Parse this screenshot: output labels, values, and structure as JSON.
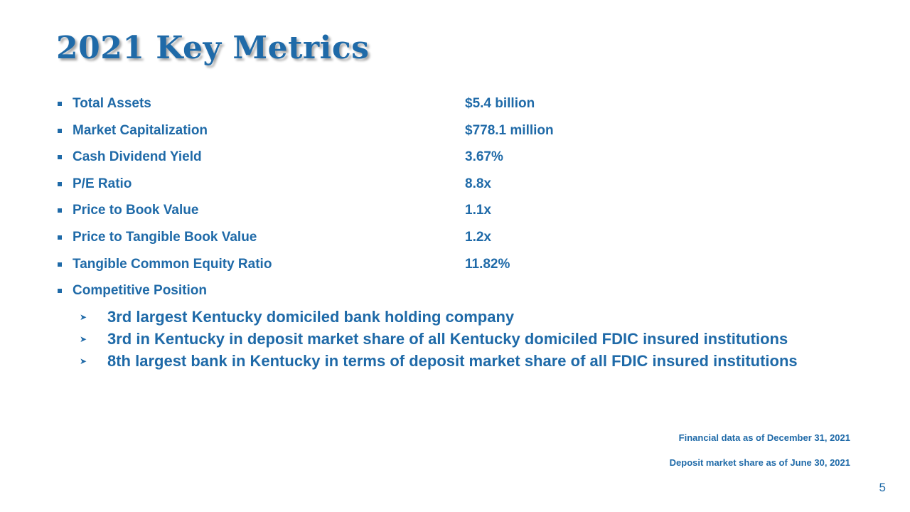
{
  "slide": {
    "title": "2021 Key Metrics",
    "page_number": "5"
  },
  "metrics": [
    {
      "label": "Total Assets",
      "value": "$5.4 billion"
    },
    {
      "label": "Market Capitalization",
      "value": "$778.1 million"
    },
    {
      "label": "Cash Dividend Yield",
      "value": "3.67%"
    },
    {
      "label": "P/E Ratio",
      "value": "8.8x"
    },
    {
      "label": "Price to Book Value",
      "value": "1.1x"
    },
    {
      "label": "Price to Tangible Book Value",
      "value": "1.2x"
    },
    {
      "label": "Tangible Common Equity Ratio",
      "value": "11.82%"
    },
    {
      "label": "Competitive Position",
      "value": ""
    }
  ],
  "competitive_position": [
    "3rd largest Kentucky domiciled bank holding company",
    "3rd in Kentucky in deposit market share of all Kentucky domiciled FDIC insured institutions",
    "8th largest bank in Kentucky in terms of deposit market share of all FDIC insured institutions"
  ],
  "footnotes": [
    "Financial data as of December 31, 2021",
    "Deposit market share as of June 30, 2021"
  ],
  "colors": {
    "text": "#1f6aa8",
    "background": "#ffffff"
  },
  "icons": {
    "main_bullet": "square-bullet-icon",
    "sub_bullet": "arrowhead-bullet-icon"
  }
}
